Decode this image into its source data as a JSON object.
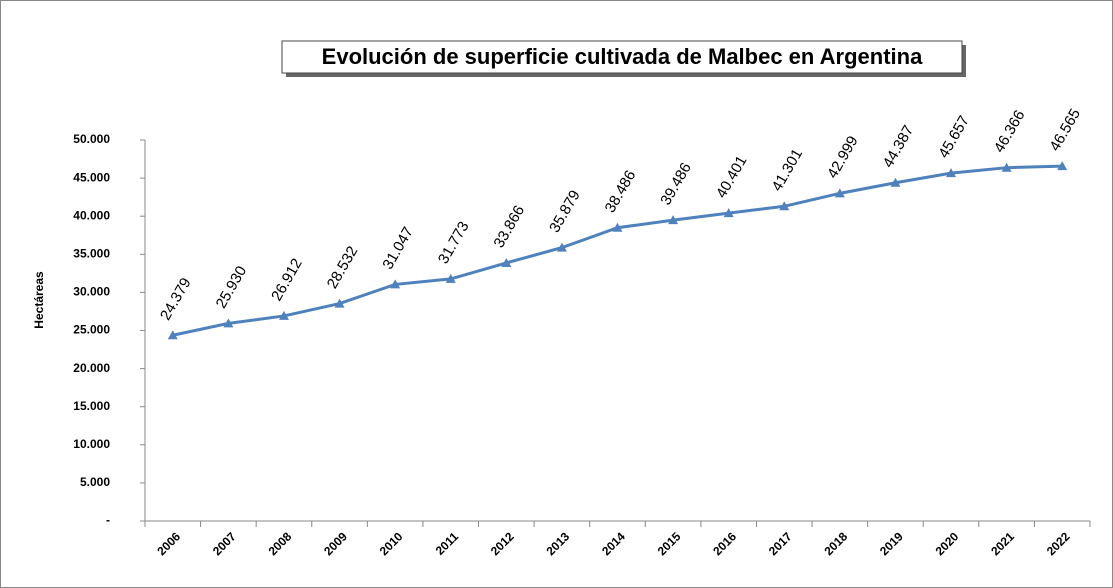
{
  "chart_data": {
    "type": "line",
    "title": "Evolución de superficie cultivada de Malbec en Argentina",
    "y_label": "Hectáreas",
    "categories": [
      "2006",
      "2007",
      "2008",
      "2009",
      "2010",
      "2011",
      "2012",
      "2013",
      "2014",
      "2015",
      "2016",
      "2017",
      "2018",
      "2019",
      "2020",
      "2021",
      "2022"
    ],
    "series": [
      {
        "name": "Hectáreas",
        "color": "#4f81bd",
        "values": [
          24379,
          25930,
          26912,
          28532,
          31047,
          31773,
          33866,
          35879,
          38486,
          39486,
          40401,
          41301,
          42999,
          44387,
          45657,
          46366,
          46565
        ],
        "value_labels": [
          "24.379",
          "25.930",
          "26.912",
          "28.532",
          "31.047",
          "31.773",
          "33.866",
          "35.879",
          "38.486",
          "39.486",
          "40.401",
          "41.301",
          "42.999",
          "44.387",
          "45.657",
          "46.366",
          "46.565"
        ]
      }
    ],
    "ylim": [
      0,
      50000
    ],
    "yticks": [
      {
        "value": 0,
        "label": "-"
      },
      {
        "value": 5000,
        "label": "5.000"
      },
      {
        "value": 10000,
        "label": "10.000"
      },
      {
        "value": 15000,
        "label": "15.000"
      },
      {
        "value": 20000,
        "label": "20.000"
      },
      {
        "value": 25000,
        "label": "25.000"
      },
      {
        "value": 30000,
        "label": "30.000"
      },
      {
        "value": 35000,
        "label": "35.000"
      },
      {
        "value": 40000,
        "label": "40.000"
      },
      {
        "value": 45000,
        "label": "45.000"
      },
      {
        "value": 50000,
        "label": "50.000"
      }
    ],
    "grid": false
  }
}
